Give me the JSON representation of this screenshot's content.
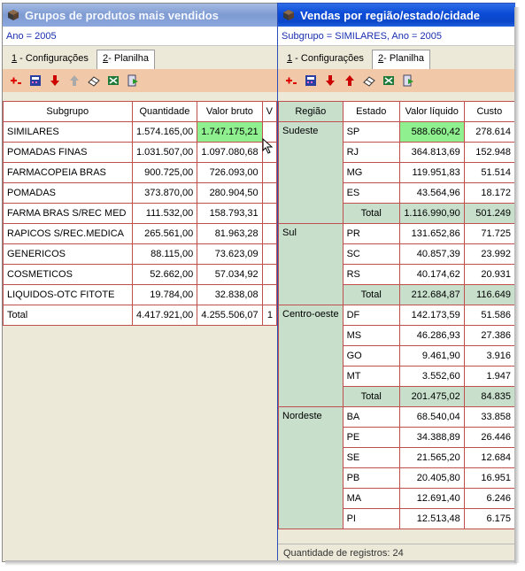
{
  "window1": {
    "title": "Grupos de produtos mais vendidos",
    "filter": "Ano = 2005",
    "tabs": [
      {
        "num": "1",
        "label": " - Configurações"
      },
      {
        "num": "2",
        "label": "- Planilha"
      }
    ],
    "columns": [
      "Subgrupo",
      "Quantidade",
      "Valor bruto",
      "V"
    ],
    "rows": [
      {
        "subgrupo": "SIMILARES",
        "quantidade": "1.574.165,00",
        "valor": "1.747.175,21",
        "extra": ""
      },
      {
        "subgrupo": "POMADAS FINAS",
        "quantidade": "1.031.507,00",
        "valor": "1.097.080,68",
        "extra": ""
      },
      {
        "subgrupo": "FARMACOPEIA BRAS",
        "quantidade": "900.725,00",
        "valor": "726.093,00",
        "extra": ""
      },
      {
        "subgrupo": "POMADAS",
        "quantidade": "373.870,00",
        "valor": "280.904,50",
        "extra": ""
      },
      {
        "subgrupo": "FARMA  BRAS S/REC MED",
        "quantidade": "111.532,00",
        "valor": "158.793,31",
        "extra": ""
      },
      {
        "subgrupo": "RAPICOS S/REC.MEDICA",
        "quantidade": "265.561,00",
        "valor": "81.963,28",
        "extra": ""
      },
      {
        "subgrupo": "GENERICOS",
        "quantidade": "88.115,00",
        "valor": "73.623,09",
        "extra": ""
      },
      {
        "subgrupo": "COSMETICOS",
        "quantidade": "52.662,00",
        "valor": "57.034,92",
        "extra": ""
      },
      {
        "subgrupo": "LIQUIDOS-OTC  FITOTE",
        "quantidade": "19.784,00",
        "valor": "32.838,08",
        "extra": ""
      },
      {
        "subgrupo": "Total",
        "quantidade": "4.417.921,00",
        "valor": "4.255.506,07",
        "extra": "1"
      }
    ]
  },
  "window2": {
    "title": "Vendas por região/estado/cidade",
    "filter": "Subgrupo = SIMILARES, Ano = 2005",
    "tabs": [
      {
        "num": "1",
        "label": " - Configurações"
      },
      {
        "num": "2",
        "label": "- Planilha"
      }
    ],
    "columns": [
      "Região",
      "Estado",
      "Valor líquido",
      "Custo"
    ],
    "regions": [
      {
        "name": "Sudeste",
        "rows": [
          {
            "estado": "SP",
            "valor": "588.660,42",
            "custo": "278.614"
          },
          {
            "estado": "RJ",
            "valor": "364.813,69",
            "custo": "152.948"
          },
          {
            "estado": "MG",
            "valor": "119.951,83",
            "custo": "51.514"
          },
          {
            "estado": "ES",
            "valor": "43.564,96",
            "custo": "18.172"
          },
          {
            "estado": "Total",
            "valor": "1.116.990,90",
            "custo": "501.249"
          }
        ]
      },
      {
        "name": "Sul",
        "rows": [
          {
            "estado": "PR",
            "valor": "131.652,86",
            "custo": "71.725"
          },
          {
            "estado": "SC",
            "valor": "40.857,39",
            "custo": "23.992"
          },
          {
            "estado": "RS",
            "valor": "40.174,62",
            "custo": "20.931"
          },
          {
            "estado": "Total",
            "valor": "212.684,87",
            "custo": "116.649"
          }
        ]
      },
      {
        "name": "Centro-oeste",
        "rows": [
          {
            "estado": "DF",
            "valor": "142.173,59",
            "custo": "51.586"
          },
          {
            "estado": "MS",
            "valor": "46.286,93",
            "custo": "27.386"
          },
          {
            "estado": "GO",
            "valor": "9.461,90",
            "custo": "3.916"
          },
          {
            "estado": "MT",
            "valor": "3.552,60",
            "custo": "1.947"
          },
          {
            "estado": "Total",
            "valor": "201.475,02",
            "custo": "84.835"
          }
        ]
      },
      {
        "name": "Nordeste",
        "rows": [
          {
            "estado": "BA",
            "valor": "68.540,04",
            "custo": "33.858"
          },
          {
            "estado": "PE",
            "valor": "34.388,89",
            "custo": "26.446"
          },
          {
            "estado": "SE",
            "valor": "21.565,20",
            "custo": "12.684"
          },
          {
            "estado": "PB",
            "valor": "20.405,80",
            "custo": "16.951"
          },
          {
            "estado": "MA",
            "valor": "12.691,40",
            "custo": "6.246"
          },
          {
            "estado": "PI",
            "valor": "12.513,48",
            "custo": "6.175"
          }
        ]
      }
    ],
    "status": "Quantidade de registros: 24"
  },
  "colors": {
    "grid_border": "#c0504d",
    "toolbar": "#f2c9a8",
    "selected_cell": "#8ff08f",
    "group_cell": "#c7dfcb",
    "active_title": "#0a4ad6",
    "inactive_title": "#7d9ad2"
  },
  "icons": {
    "title": "cube-icon",
    "toolbar": [
      "add-filter-icon",
      "calculator-icon",
      "arrow-down-icon",
      "arrow-up-icon",
      "eraser-icon",
      "excel-icon",
      "export-icon"
    ]
  }
}
